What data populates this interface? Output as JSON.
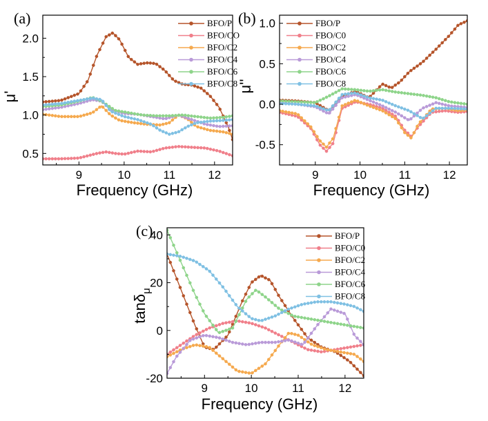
{
  "chart_data": [
    {
      "type": "line",
      "panel": "(a)",
      "xlabel": "Frequency (GHz)",
      "ylabel": "μ'",
      "xlim": [
        8.2,
        12.4
      ],
      "ylim": [
        0.35,
        2.3
      ],
      "xticks": [
        9,
        10,
        11,
        12
      ],
      "yticks": [
        0.5,
        1.0,
        1.5,
        2.0
      ],
      "ytick_labels": [
        "0.5",
        "1.0",
        "1.5",
        "2.0"
      ],
      "legend_position": "top-right",
      "series": [
        {
          "name": "BFO/P",
          "color": "#b5542a",
          "x": [
            8.2,
            8.6,
            9.0,
            9.2,
            9.4,
            9.6,
            9.75,
            9.9,
            10.1,
            10.3,
            10.5,
            10.7,
            10.9,
            11.1,
            11.3,
            11.5,
            11.7,
            11.9,
            12.1,
            12.3,
            12.4
          ],
          "y": [
            1.17,
            1.19,
            1.28,
            1.45,
            1.78,
            2.02,
            2.07,
            1.98,
            1.75,
            1.66,
            1.68,
            1.67,
            1.58,
            1.45,
            1.4,
            1.39,
            1.35,
            1.25,
            1.1,
            0.85,
            0.68
          ]
        },
        {
          "name": "BFO/CO",
          "color": "#f07f8a",
          "x": [
            8.2,
            8.6,
            9.0,
            9.4,
            9.6,
            9.8,
            10.0,
            10.3,
            10.6,
            10.9,
            11.2,
            11.5,
            11.8,
            12.1,
            12.4
          ],
          "y": [
            0.43,
            0.43,
            0.44,
            0.5,
            0.52,
            0.5,
            0.49,
            0.53,
            0.52,
            0.57,
            0.59,
            0.58,
            0.57,
            0.53,
            0.47
          ]
        },
        {
          "name": "BFO/C2",
          "color": "#f5a94e",
          "x": [
            8.2,
            8.6,
            9.0,
            9.3,
            9.5,
            9.7,
            9.9,
            10.2,
            10.5,
            10.8,
            11.0,
            11.2,
            11.4,
            11.6,
            11.9,
            12.2,
            12.4
          ],
          "y": [
            1.01,
            0.98,
            0.98,
            1.03,
            1.12,
            1.0,
            0.93,
            0.9,
            0.88,
            0.87,
            0.9,
            1.0,
            0.95,
            0.85,
            0.8,
            0.78,
            0.75
          ]
        },
        {
          "name": "BFO/C4",
          "color": "#b99ad8",
          "x": [
            8.2,
            8.6,
            9.0,
            9.3,
            9.5,
            9.7,
            10.0,
            10.3,
            10.6,
            10.9,
            11.2,
            11.5,
            11.8,
            12.1,
            12.4
          ],
          "y": [
            1.07,
            1.1,
            1.15,
            1.2,
            1.18,
            1.07,
            1.02,
            1.01,
            0.98,
            0.95,
            1.0,
            0.94,
            0.88,
            0.85,
            0.86
          ]
        },
        {
          "name": "BFO/C6",
          "color": "#8ed48a",
          "x": [
            8.2,
            8.6,
            9.0,
            9.3,
            9.5,
            9.8,
            10.1,
            10.4,
            10.7,
            11.0,
            11.3,
            11.6,
            11.9,
            12.2,
            12.4
          ],
          "y": [
            1.11,
            1.13,
            1.18,
            1.23,
            1.18,
            1.06,
            1.03,
            1.0,
            0.99,
            0.99,
            1.0,
            0.98,
            0.96,
            0.97,
            0.99
          ]
        },
        {
          "name": "BFO/C8",
          "color": "#7fc0e3",
          "x": [
            8.2,
            8.6,
            9.0,
            9.3,
            9.5,
            9.7,
            10.0,
            10.3,
            10.6,
            10.8,
            11.0,
            11.2,
            11.4,
            11.6,
            11.9,
            12.2,
            12.4
          ],
          "y": [
            1.13,
            1.15,
            1.19,
            1.22,
            1.2,
            1.05,
            0.98,
            0.94,
            0.88,
            0.8,
            0.75,
            0.78,
            0.85,
            0.9,
            0.92,
            0.93,
            0.94
          ]
        }
      ]
    },
    {
      "type": "line",
      "panel": "(b)",
      "xlabel": "Frequency (GHz)",
      "ylabel": "μ''",
      "xlim": [
        8.2,
        12.4
      ],
      "ylim": [
        -0.75,
        1.1
      ],
      "xticks": [
        9,
        10,
        11,
        12
      ],
      "yticks": [
        -0.5,
        0.0,
        0.5,
        1.0
      ],
      "ytick_labels": [
        "-0.5",
        "0.0",
        "0.5",
        "1.0"
      ],
      "legend_position": "top-left",
      "series": [
        {
          "name": "FBO/P",
          "color": "#b5542a",
          "x": [
            8.2,
            8.6,
            9.0,
            9.3,
            9.6,
            9.9,
            10.2,
            10.5,
            10.7,
            10.9,
            11.1,
            11.4,
            11.7,
            12.0,
            12.2,
            12.4
          ],
          "y": [
            0.05,
            0.04,
            0.02,
            -0.08,
            0.1,
            0.16,
            0.08,
            0.25,
            0.2,
            0.28,
            0.4,
            0.52,
            0.68,
            0.85,
            0.98,
            1.03
          ]
        },
        {
          "name": "FBO/C0",
          "color": "#f07f8a",
          "x": [
            8.2,
            8.6,
            8.9,
            9.1,
            9.25,
            9.4,
            9.6,
            9.9,
            10.2,
            10.5,
            10.8,
            11.0,
            11.15,
            11.3,
            11.6,
            11.9,
            12.2,
            12.4
          ],
          "y": [
            -0.1,
            -0.15,
            -0.3,
            -0.5,
            -0.58,
            -0.48,
            -0.05,
            0.03,
            0.0,
            -0.05,
            -0.15,
            -0.32,
            -0.4,
            -0.28,
            -0.1,
            -0.08,
            -0.1,
            -0.09
          ]
        },
        {
          "name": "FBO/C2",
          "color": "#f5a94e",
          "x": [
            8.2,
            8.6,
            8.9,
            9.1,
            9.25,
            9.4,
            9.6,
            9.9,
            10.2,
            10.5,
            10.8,
            11.0,
            11.15,
            11.3,
            11.6,
            11.9,
            12.2,
            12.4
          ],
          "y": [
            -0.08,
            -0.12,
            -0.28,
            -0.45,
            -0.53,
            -0.42,
            -0.02,
            0.05,
            -0.02,
            -0.08,
            -0.18,
            -0.35,
            -0.42,
            -0.25,
            -0.06,
            -0.05,
            -0.08,
            -0.07
          ]
        },
        {
          "name": "FBO/C4",
          "color": "#b99ad8",
          "x": [
            8.2,
            8.6,
            9.0,
            9.3,
            9.6,
            9.9,
            10.2,
            10.5,
            10.8,
            11.1,
            11.4,
            11.7,
            12.0,
            12.4
          ],
          "y": [
            0.02,
            0.0,
            -0.03,
            -0.12,
            0.08,
            0.12,
            0.05,
            -0.02,
            -0.1,
            -0.2,
            -0.05,
            0.02,
            -0.02,
            -0.04
          ]
        },
        {
          "name": "FBO/C6",
          "color": "#8ed48a",
          "x": [
            8.2,
            8.6,
            9.0,
            9.3,
            9.6,
            9.9,
            10.2,
            10.5,
            10.8,
            11.1,
            11.4,
            11.7,
            12.0,
            12.4
          ],
          "y": [
            0.04,
            0.03,
            0.02,
            0.1,
            0.19,
            0.18,
            0.16,
            0.18,
            0.15,
            0.13,
            0.11,
            0.08,
            0.03,
            0.0
          ]
        },
        {
          "name": "FBO/C8",
          "color": "#7fc0e3",
          "x": [
            8.2,
            8.6,
            9.0,
            9.3,
            9.6,
            9.9,
            10.2,
            10.5,
            10.8,
            11.1,
            11.4,
            11.7,
            12.0,
            12.4
          ],
          "y": [
            0.01,
            0.0,
            -0.02,
            -0.08,
            0.12,
            0.14,
            0.08,
            0.05,
            -0.02,
            -0.08,
            -0.18,
            -0.05,
            -0.05,
            -0.06
          ]
        }
      ]
    },
    {
      "type": "line",
      "panel": "(c)",
      "xlabel": "Frequency (GHz)",
      "ylabel": "tanδμ",
      "ylabel_main": "tanδ",
      "ylabel_sub": "μ",
      "xlim": [
        8.2,
        12.4
      ],
      "ylim": [
        -20,
        43
      ],
      "xticks": [
        9,
        10,
        11,
        12
      ],
      "yticks": [
        -20,
        0,
        20,
        40
      ],
      "ytick_labels": [
        "-20",
        "0",
        "20",
        "40"
      ],
      "legend_position": "top-right",
      "series": [
        {
          "name": "BFO/P",
          "color": "#b5542a",
          "x": [
            8.2,
            8.4,
            8.6,
            8.8,
            9.0,
            9.2,
            9.5,
            9.8,
            10.0,
            10.2,
            10.4,
            10.6,
            10.9,
            11.2,
            11.5,
            11.8,
            12.1,
            12.4
          ],
          "y": [
            32,
            22,
            12,
            2,
            -7,
            -8,
            -2,
            12,
            20,
            23,
            21,
            14,
            5,
            -3,
            -7,
            -9,
            -13,
            -19
          ]
        },
        {
          "name": "BFO/C0",
          "color": "#f07f8a",
          "x": [
            8.2,
            8.5,
            8.8,
            9.1,
            9.4,
            9.7,
            10.0,
            10.3,
            10.6,
            10.9,
            11.2,
            11.5,
            11.8,
            12.1,
            12.4
          ],
          "y": [
            -10,
            -6,
            -2,
            1,
            3,
            4,
            3,
            1,
            -2,
            -5,
            -8,
            -9,
            -8,
            -7,
            -6
          ]
        },
        {
          "name": "BFO/C2",
          "color": "#f5a94e",
          "x": [
            8.2,
            8.5,
            8.8,
            9.1,
            9.4,
            9.7,
            10.0,
            10.3,
            10.6,
            10.8,
            11.0,
            11.3,
            11.6,
            11.9,
            12.2,
            12.4
          ],
          "y": [
            -11,
            -8,
            -6,
            -7,
            -12,
            -17,
            -18,
            -14,
            -6,
            -1,
            -2,
            -6,
            -8,
            -9,
            -10,
            -13
          ]
        },
        {
          "name": "BFO/C4",
          "color": "#b99ad8",
          "x": [
            8.2,
            8.4,
            8.7,
            9.0,
            9.3,
            9.6,
            9.9,
            10.2,
            10.5,
            10.8,
            11.1,
            11.4,
            11.7,
            12.0,
            12.2,
            12.4
          ],
          "y": [
            -18,
            -11,
            -4,
            -2,
            -3,
            -5,
            -6,
            -5,
            -5,
            -4,
            -6,
            2,
            9,
            7,
            -2,
            -6
          ]
        },
        {
          "name": "BFO/C6",
          "color": "#8ed48a",
          "x": [
            8.2,
            8.4,
            8.6,
            8.8,
            9.0,
            9.3,
            9.6,
            9.9,
            10.1,
            10.3,
            10.6,
            10.9,
            11.2,
            11.5,
            11.8,
            12.1,
            12.4
          ],
          "y": [
            42,
            33,
            24,
            15,
            7,
            -1,
            1,
            13,
            17,
            14,
            9,
            6,
            5,
            4,
            3,
            2,
            1
          ]
        },
        {
          "name": "BFO/C8",
          "color": "#7fc0e3",
          "x": [
            8.2,
            8.5,
            8.8,
            9.1,
            9.4,
            9.7,
            10.0,
            10.2,
            10.5,
            10.8,
            11.1,
            11.4,
            11.7,
            12.0,
            12.2,
            12.4
          ],
          "y": [
            32,
            31,
            29,
            25,
            18,
            10,
            5,
            4,
            6,
            9,
            11,
            12,
            12,
            11,
            10,
            8
          ]
        }
      ]
    }
  ]
}
